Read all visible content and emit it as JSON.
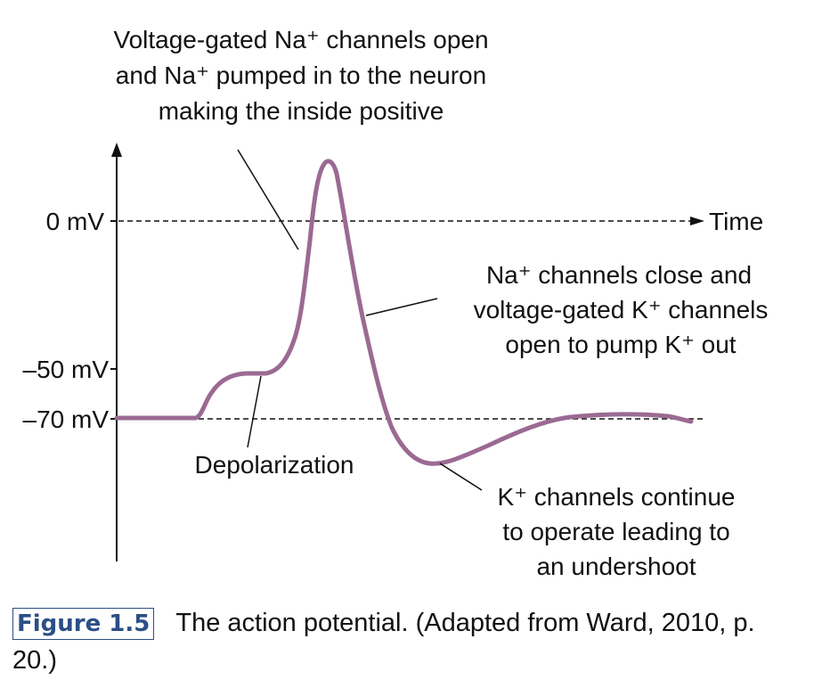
{
  "colors": {
    "curve": "#9b6a93",
    "text": "#111111",
    "figure_number": "#2b4f86",
    "lines": "#111111"
  },
  "axis": {
    "y_labels": [
      "0 mV",
      "–50 mV",
      "–70 mV"
    ],
    "x_label": "Time"
  },
  "annotations": {
    "top": [
      "Voltage-gated Na⁺ channels open",
      "and Na⁺ pumped in to the neuron",
      "making the inside positive"
    ],
    "right": [
      "Na⁺ channels close and",
      "voltage-gated K⁺ channels",
      "open to pump K⁺ out"
    ],
    "depolarization": "Depolarization",
    "undershoot": [
      "K⁺ channels continue",
      "to operate leading to",
      "an undershoot"
    ]
  },
  "caption": {
    "figure_number": "Figure 1.5",
    "text": "The action potential. (Adapted from Ward, 2010, p. 20.)"
  }
}
